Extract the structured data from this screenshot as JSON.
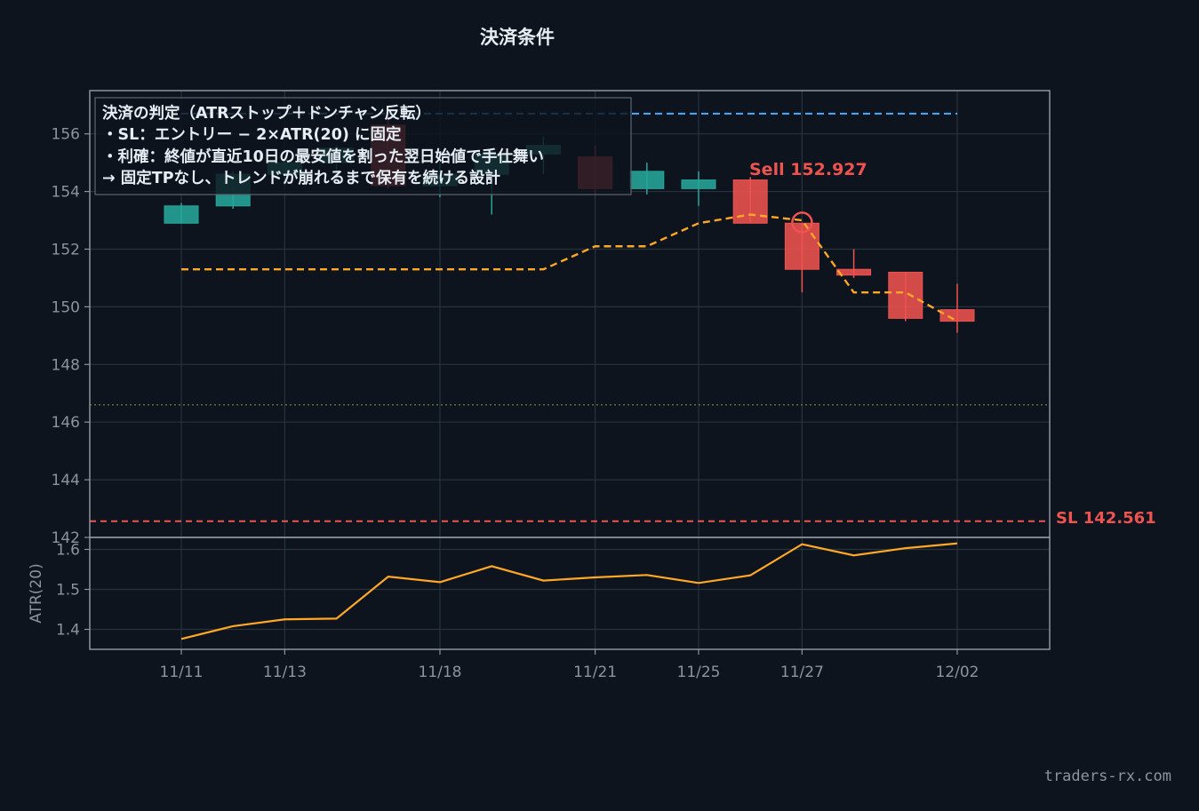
{
  "title": "決済条件",
  "watermark": "traders-rx.com",
  "colors": {
    "background": "#0d141d",
    "grid": "#26323e",
    "frame": "#8b949e",
    "up_candle": "#26a69a",
    "down_candle": "#ef5350",
    "channel_line": "#ffa726",
    "upper_line": "#42a5f5",
    "sl_line": "#ef5350",
    "entry_line": "#6e7f3e",
    "atr_line": "#ffa726"
  },
  "annotation_box": {
    "lines": [
      "決済の判定（ATRストップ＋ドンチャン反転）",
      "・SL：エントリー − 2×ATR(20) に固定",
      "・利確：終値が直近10日の最安値を割った翌日始値で手仕舞い",
      "→ 固定TPなし、トレンドが崩れるまで保有を続ける設計"
    ]
  },
  "sell_label": "Sell 152.927",
  "sl_label": "SL 142.561",
  "chart_data": [
    {
      "type": "candlestick",
      "dates": [
        "11/11",
        "11/12",
        "11/13",
        "11/14",
        "11/17",
        "11/18",
        "11/19",
        "11/20",
        "11/21",
        "11/24",
        "11/25",
        "11/26",
        "11/27",
        "11/28",
        "12/01",
        "12/02"
      ],
      "candles": [
        {
          "open": 152.9,
          "high": 153.6,
          "low": 152.9,
          "close": 153.5
        },
        {
          "open": 153.5,
          "high": 154.7,
          "low": 153.4,
          "close": 154.6
        },
        {
          "open": 154.6,
          "high": 155.2,
          "low": 154.2,
          "close": 155.0
        },
        {
          "open": 155.0,
          "high": 155.6,
          "low": 154.3,
          "close": 155.5
        },
        {
          "open": 156.3,
          "high": 156.6,
          "low": 154.1,
          "close": 154.2
        },
        {
          "open": 154.2,
          "high": 155.0,
          "low": 153.8,
          "close": 154.6
        },
        {
          "open": 154.6,
          "high": 155.5,
          "low": 153.2,
          "close": 155.3
        },
        {
          "open": 155.3,
          "high": 155.9,
          "low": 154.6,
          "close": 155.6
        },
        {
          "open": 155.2,
          "high": 155.6,
          "low": 153.9,
          "close": 154.1
        },
        {
          "open": 154.1,
          "high": 155.0,
          "low": 153.9,
          "close": 154.7
        },
        {
          "open": 154.1,
          "high": 154.7,
          "low": 153.5,
          "close": 154.4
        },
        {
          "open": 154.4,
          "high": 154.5,
          "low": 152.9,
          "close": 152.9
        },
        {
          "open": 152.9,
          "high": 152.9,
          "low": 150.5,
          "close": 151.3
        },
        {
          "open": 151.3,
          "high": 152.0,
          "low": 151.0,
          "close": 151.1
        },
        {
          "open": 151.2,
          "high": 151.2,
          "low": 149.5,
          "close": 149.6
        },
        {
          "open": 149.9,
          "high": 150.8,
          "low": 149.1,
          "close": 149.5
        }
      ],
      "channel_lower": [
        151.3,
        151.3,
        151.3,
        151.3,
        151.3,
        151.3,
        151.3,
        151.3,
        152.1,
        152.1,
        152.9,
        153.2,
        153.0,
        150.5,
        150.5,
        149.5
      ],
      "upper_level": 156.7,
      "stop_loss": 142.561,
      "entry_level": 146.6,
      "sell": {
        "index": 12,
        "price": 152.927
      },
      "ylim": [
        142,
        157.5
      ],
      "yticks": [
        142,
        144,
        146,
        148,
        150,
        152,
        154,
        156
      ],
      "xticks": [
        "11/11",
        "11/13",
        "11/18",
        "11/21",
        "11/25",
        "11/27",
        "12/02"
      ]
    },
    {
      "type": "line",
      "ylabel": "ATR(20)",
      "dates": [
        "11/11",
        "11/12",
        "11/13",
        "11/14",
        "11/17",
        "11/18",
        "11/19",
        "11/20",
        "11/21",
        "11/24",
        "11/25",
        "11/26",
        "11/27",
        "11/28",
        "12/01",
        "12/02"
      ],
      "values": [
        1.376,
        1.408,
        1.425,
        1.427,
        1.532,
        1.518,
        1.558,
        1.522,
        1.53,
        1.536,
        1.516,
        1.535,
        1.613,
        1.585,
        1.603,
        1.615
      ],
      "ylim": [
        1.35,
        1.63
      ],
      "yticks": [
        1.4,
        1.5,
        1.6
      ]
    }
  ]
}
